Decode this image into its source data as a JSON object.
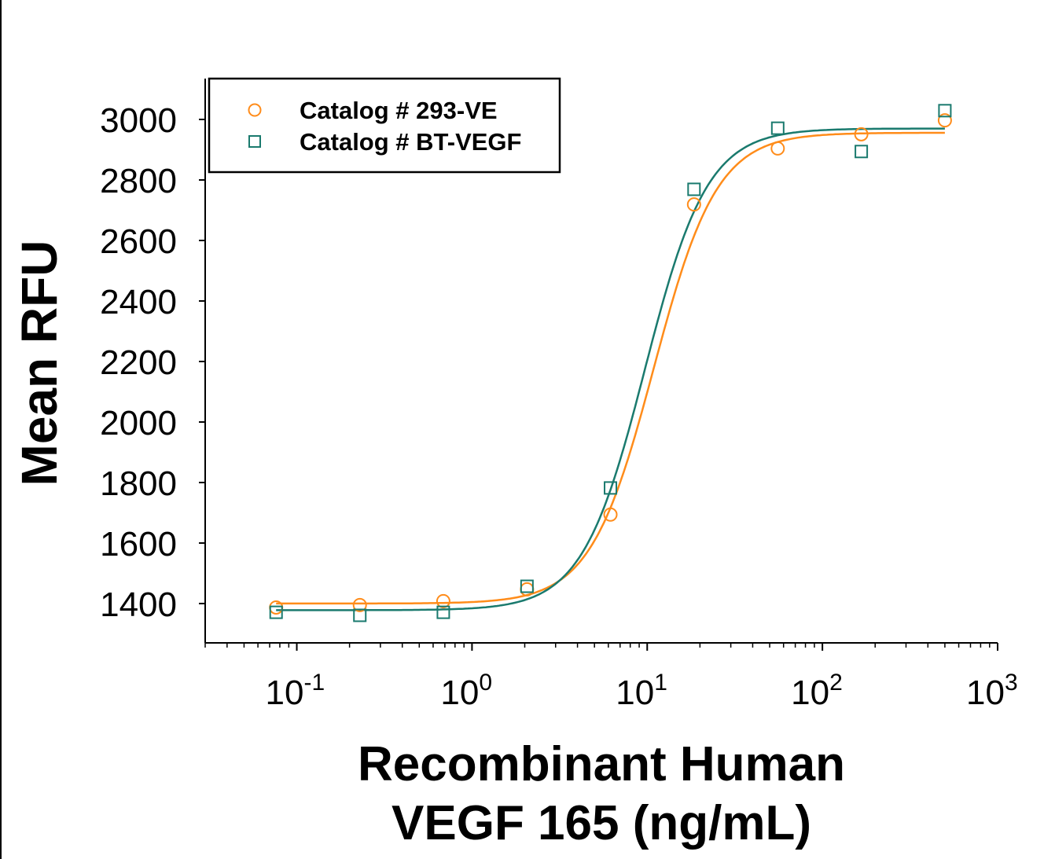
{
  "chart_data": {
    "type": "scatter",
    "xlabel_line1": "Recombinant Human",
    "xlabel_line2": "VEGF 165 (ng/mL)",
    "ylabel": "Mean RFU",
    "xscale": "log",
    "xlim": [
      0.03,
      1000
    ],
    "ylim": [
      1270,
      3135
    ],
    "xticks": [
      0.1,
      1,
      10,
      100,
      1000
    ],
    "xtick_labels": [
      {
        "base": "10",
        "exp": "-1"
      },
      {
        "base": "10",
        "exp": "0"
      },
      {
        "base": "10",
        "exp": "1"
      },
      {
        "base": "10",
        "exp": "2"
      },
      {
        "base": "10",
        "exp": "3"
      }
    ],
    "yticks": [
      1400,
      1600,
      1800,
      2000,
      2200,
      2400,
      2600,
      2800,
      3000
    ],
    "grid": false,
    "legend_position": "top-left",
    "series": [
      {
        "name": "Catalog # 293-VE",
        "marker": "circle",
        "color": "#ff8c1a",
        "x": [
          0.0762,
          0.229,
          0.686,
          2.06,
          6.17,
          18.5,
          55.6,
          166.7,
          500
        ],
        "y": [
          1387,
          1395,
          1408,
          1447,
          1694,
          2719,
          2904,
          2951,
          2997
        ],
        "fit": {
          "model": "4PL",
          "bottom": 1400,
          "top": 2956,
          "ec50": 10.9,
          "hill": 2.4
        }
      },
      {
        "name": "Catalog # BT-VEGF",
        "marker": "square",
        "color": "#1a7a6e",
        "x": [
          0.0762,
          0.229,
          0.686,
          2.06,
          6.17,
          18.5,
          55.6,
          166.7,
          500
        ],
        "y": [
          1371,
          1361,
          1371,
          1457,
          1782,
          2769,
          2971,
          2894,
          3029
        ],
        "fit": {
          "model": "4PL",
          "bottom": 1378,
          "top": 2970,
          "ec50": 9.7,
          "hill": 2.43
        }
      }
    ]
  }
}
